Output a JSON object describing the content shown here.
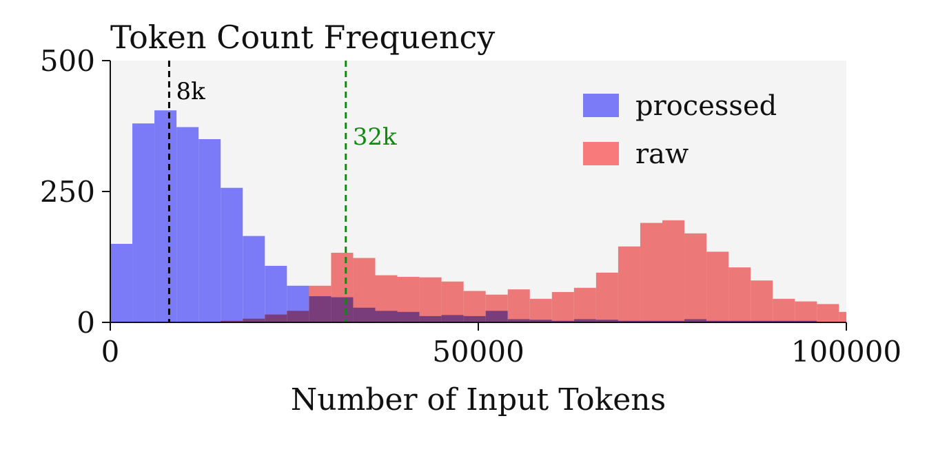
{
  "chart_data": {
    "type": "bar",
    "title": "Token Count Frequency",
    "xlabel": "Number of Input Tokens",
    "ylabel": "",
    "xlim": [
      0,
      100000
    ],
    "ylim": [
      0,
      500
    ],
    "bin_width": 3000,
    "x_ticks": [
      "0",
      "50000",
      "100000"
    ],
    "y_ticks": [
      "0",
      "250",
      "500"
    ],
    "grid": false,
    "legend_position": "top-right",
    "background": "#f4f4f4",
    "series": [
      {
        "name": "processed",
        "color": "#7b7bf8",
        "bin_starts": [
          0,
          3000,
          6000,
          9000,
          12000,
          15000,
          18000,
          21000,
          24000,
          27000,
          30000,
          33000,
          36000,
          39000,
          42000,
          45000,
          48000,
          51000,
          54000,
          57000,
          60000,
          63000,
          66000,
          69000,
          72000,
          75000,
          78000,
          81000,
          84000,
          87000,
          90000,
          93000,
          96000,
          99000
        ],
        "values": [
          150,
          380,
          405,
          373,
          350,
          257,
          165,
          108,
          70,
          50,
          48,
          28,
          22,
          20,
          12,
          14,
          12,
          22,
          6,
          5,
          3,
          6,
          5,
          3,
          3,
          3,
          6,
          3,
          3,
          3,
          3,
          3,
          1,
          1
        ]
      },
      {
        "name": "raw",
        "color": "#f87a7a",
        "bin_starts": [
          0,
          3000,
          6000,
          9000,
          12000,
          15000,
          18000,
          21000,
          24000,
          27000,
          30000,
          33000,
          36000,
          39000,
          42000,
          45000,
          48000,
          51000,
          54000,
          57000,
          60000,
          63000,
          66000,
          69000,
          72000,
          75000,
          78000,
          81000,
          84000,
          87000,
          90000,
          93000,
          96000,
          99000
        ],
        "values": [
          0,
          0,
          0,
          0,
          0,
          3,
          7,
          15,
          22,
          70,
          133,
          123,
          90,
          87,
          86,
          78,
          60,
          53,
          63,
          45,
          58,
          66,
          95,
          145,
          190,
          195,
          170,
          135,
          105,
          80,
          45,
          40,
          35,
          20
        ]
      }
    ],
    "vlines": [
      {
        "x": 8000,
        "label": "8k",
        "color": "#000000"
      },
      {
        "x": 32000,
        "label": "32k",
        "color": "#118811"
      }
    ]
  }
}
